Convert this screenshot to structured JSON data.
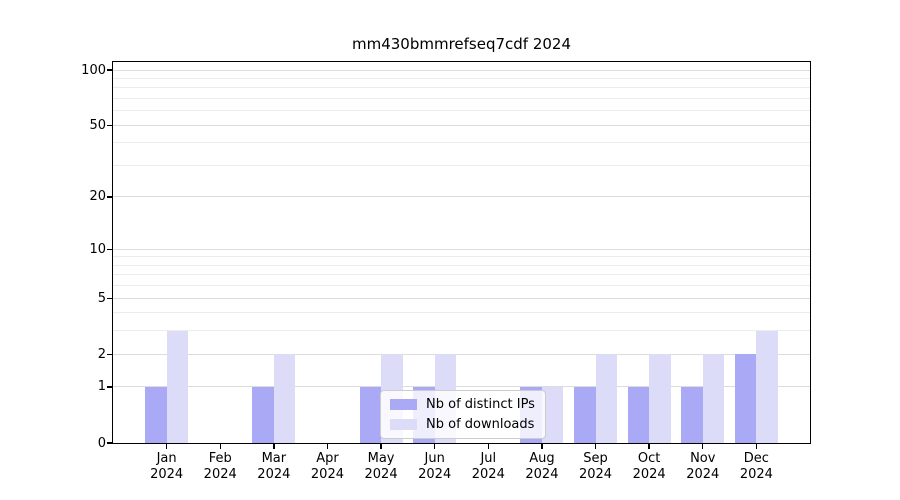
{
  "chart_data": {
    "type": "bar",
    "title": "mm430bmmrefseq7cdf 2024",
    "categories": [
      "Jan",
      "Feb",
      "Mar",
      "Apr",
      "May",
      "Jun",
      "Jul",
      "Aug",
      "Sep",
      "Oct",
      "Nov",
      "Dec"
    ],
    "year": "2024",
    "series": [
      {
        "name": "Nb of distinct IPs",
        "values": [
          1,
          0,
          1,
          0,
          1,
          1,
          0,
          1,
          1,
          1,
          1,
          2
        ]
      },
      {
        "name": "Nb of downloads",
        "values": [
          3,
          0,
          2,
          0,
          2,
          2,
          0,
          1,
          2,
          2,
          2,
          3
        ]
      }
    ],
    "yscale": "log1p",
    "ylim": [
      0,
      110.6
    ],
    "y_major_ticks": [
      0,
      1,
      2,
      5,
      10,
      20,
      50,
      100
    ],
    "y_minor_ticks": [
      3,
      4,
      6,
      7,
      8,
      9,
      30,
      40,
      60,
      70,
      80,
      90
    ],
    "grid": "horizontal",
    "legend_position": "lower center"
  },
  "legend": {
    "items": [
      {
        "label": "Nb of distinct IPs"
      },
      {
        "label": "Nb of downloads"
      }
    ]
  },
  "colors": {
    "distinct_ips": "#a9a9f5",
    "downloads": "#dcdcf9",
    "grid_major": "#dcdcdc",
    "grid_minor": "#ececec",
    "axis": "#000000",
    "legend_border": "#cccccc"
  }
}
